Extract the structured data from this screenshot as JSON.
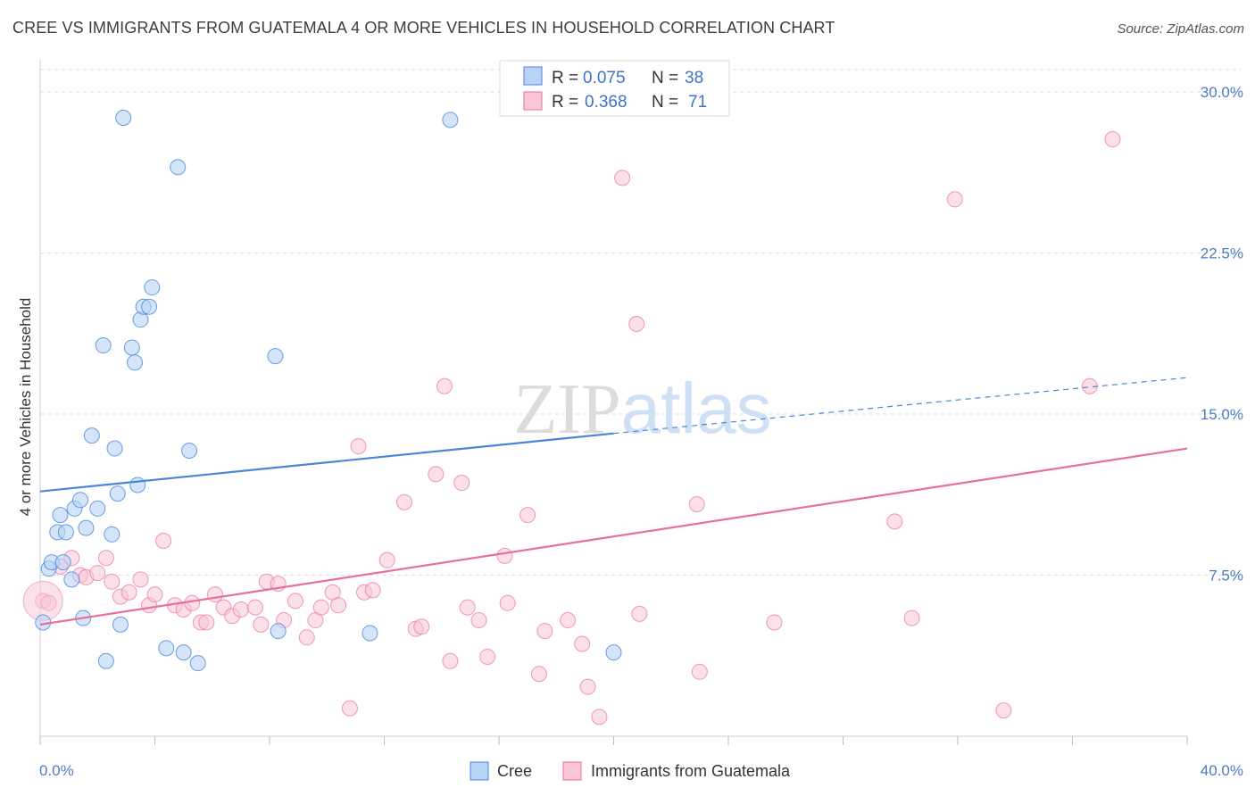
{
  "title": "CREE VS IMMIGRANTS FROM GUATEMALA 4 OR MORE VEHICLES IN HOUSEHOLD CORRELATION CHART",
  "source": "Source: ZipAtlas.com",
  "watermark": "ZIPatlas",
  "colors": {
    "cree": "#4a86d8",
    "cree_fill": "#b8d3f5",
    "guatemala": "#e8709a",
    "guatemala_fill": "#f8c6d6",
    "tick_label": "#4a7cc4",
    "grid": "#dddddd"
  },
  "legend": {
    "rows": [
      {
        "r_label": "R =",
        "r_value": "0.075",
        "n_label": "N =",
        "n_value": "38",
        "series": "cree"
      },
      {
        "r_label": "R =",
        "r_value": "0.368",
        "n_label": "N =",
        "n_value": "71",
        "series": "guatemala"
      }
    ]
  },
  "bottom_legend": [
    "Cree",
    "Immigrants from Guatemala"
  ],
  "chart_data": {
    "type": "scatter",
    "title": "CREE VS IMMIGRANTS FROM GUATEMALA 4 OR MORE VEHICLES IN HOUSEHOLD CORRELATION CHART",
    "xlabel": "",
    "ylabel": "4 or more Vehicles in Household",
    "xlim": [
      0,
      40
    ],
    "ylim": [
      0,
      31.5
    ],
    "x_tick_labels": [
      "0.0%",
      "40.0%"
    ],
    "y_ticks": [
      7.5,
      15.0,
      22.5,
      30.0
    ],
    "y_tick_labels": [
      "7.5%",
      "15.0%",
      "22.5%",
      "30.0%"
    ],
    "grid": true,
    "series": [
      {
        "name": "Cree",
        "trend": {
          "x_solid": [
            0,
            20
          ],
          "y_solid": [
            11.4,
            14.1
          ],
          "x_dashed": [
            20,
            40
          ],
          "y_dashed": [
            14.1,
            16.7
          ]
        },
        "points": [
          [
            0.1,
            5.3
          ],
          [
            0.3,
            7.8
          ],
          [
            0.4,
            8.1
          ],
          [
            0.6,
            9.5
          ],
          [
            0.7,
            10.3
          ],
          [
            0.8,
            8.1
          ],
          [
            0.9,
            9.5
          ],
          [
            1.1,
            7.3
          ],
          [
            1.2,
            10.6
          ],
          [
            1.4,
            11.0
          ],
          [
            1.5,
            5.5
          ],
          [
            1.6,
            9.7
          ],
          [
            1.8,
            14.0
          ],
          [
            2.0,
            10.6
          ],
          [
            2.2,
            18.2
          ],
          [
            2.3,
            3.5
          ],
          [
            2.5,
            9.4
          ],
          [
            2.6,
            13.4
          ],
          [
            2.7,
            11.3
          ],
          [
            2.8,
            5.2
          ],
          [
            2.9,
            28.8
          ],
          [
            3.2,
            18.1
          ],
          [
            3.3,
            17.4
          ],
          [
            3.4,
            11.7
          ],
          [
            3.5,
            19.4
          ],
          [
            3.6,
            20.0
          ],
          [
            3.8,
            20.0
          ],
          [
            3.9,
            20.9
          ],
          [
            4.4,
            4.1
          ],
          [
            4.8,
            26.5
          ],
          [
            5.0,
            3.9
          ],
          [
            5.2,
            13.3
          ],
          [
            5.5,
            3.4
          ],
          [
            8.2,
            17.7
          ],
          [
            8.3,
            4.9
          ],
          [
            11.5,
            4.8
          ],
          [
            14.3,
            28.7
          ],
          [
            20.0,
            3.9
          ]
        ]
      },
      {
        "name": "Immigrants from Guatemala",
        "trend": {
          "x": [
            0,
            40
          ],
          "y": [
            5.2,
            13.4
          ]
        },
        "points": [
          [
            0.1,
            6.3
          ],
          [
            0.3,
            6.2
          ],
          [
            0.7,
            7.9
          ],
          [
            1.1,
            8.3
          ],
          [
            1.4,
            7.5
          ],
          [
            1.6,
            7.4
          ],
          [
            2.0,
            7.6
          ],
          [
            2.3,
            8.3
          ],
          [
            2.5,
            7.2
          ],
          [
            2.8,
            6.5
          ],
          [
            3.1,
            6.7
          ],
          [
            3.5,
            7.3
          ],
          [
            3.8,
            6.1
          ],
          [
            4.0,
            6.6
          ],
          [
            4.3,
            9.1
          ],
          [
            4.7,
            6.1
          ],
          [
            5.0,
            5.9
          ],
          [
            5.3,
            6.2
          ],
          [
            5.6,
            5.3
          ],
          [
            5.8,
            5.3
          ],
          [
            6.1,
            6.6
          ],
          [
            6.4,
            6.0
          ],
          [
            6.7,
            5.6
          ],
          [
            7.0,
            5.9
          ],
          [
            7.5,
            6.0
          ],
          [
            7.7,
            5.2
          ],
          [
            7.9,
            7.2
          ],
          [
            8.3,
            7.1
          ],
          [
            8.5,
            5.4
          ],
          [
            8.9,
            6.3
          ],
          [
            9.3,
            4.6
          ],
          [
            9.6,
            5.4
          ],
          [
            9.8,
            6.0
          ],
          [
            10.2,
            6.7
          ],
          [
            10.4,
            6.1
          ],
          [
            10.8,
            1.3
          ],
          [
            11.1,
            13.5
          ],
          [
            11.3,
            6.7
          ],
          [
            11.6,
            6.8
          ],
          [
            12.1,
            8.2
          ],
          [
            12.7,
            10.9
          ],
          [
            13.1,
            5.0
          ],
          [
            13.3,
            5.1
          ],
          [
            13.8,
            12.2
          ],
          [
            14.1,
            16.3
          ],
          [
            14.3,
            3.5
          ],
          [
            14.7,
            11.8
          ],
          [
            14.9,
            6.0
          ],
          [
            15.3,
            5.4
          ],
          [
            15.6,
            3.7
          ],
          [
            16.2,
            8.4
          ],
          [
            16.3,
            6.2
          ],
          [
            17.0,
            10.3
          ],
          [
            17.4,
            2.9
          ],
          [
            17.6,
            4.9
          ],
          [
            18.4,
            5.4
          ],
          [
            18.9,
            4.3
          ],
          [
            19.1,
            2.3
          ],
          [
            19.5,
            0.9
          ],
          [
            20.3,
            26.0
          ],
          [
            20.8,
            19.2
          ],
          [
            20.9,
            5.7
          ],
          [
            22.9,
            10.8
          ],
          [
            23.0,
            3.0
          ],
          [
            25.6,
            5.3
          ],
          [
            29.8,
            10.0
          ],
          [
            30.4,
            5.5
          ],
          [
            31.9,
            25.0
          ],
          [
            33.6,
            1.2
          ],
          [
            36.6,
            16.3
          ],
          [
            37.4,
            27.8
          ]
        ]
      }
    ]
  }
}
